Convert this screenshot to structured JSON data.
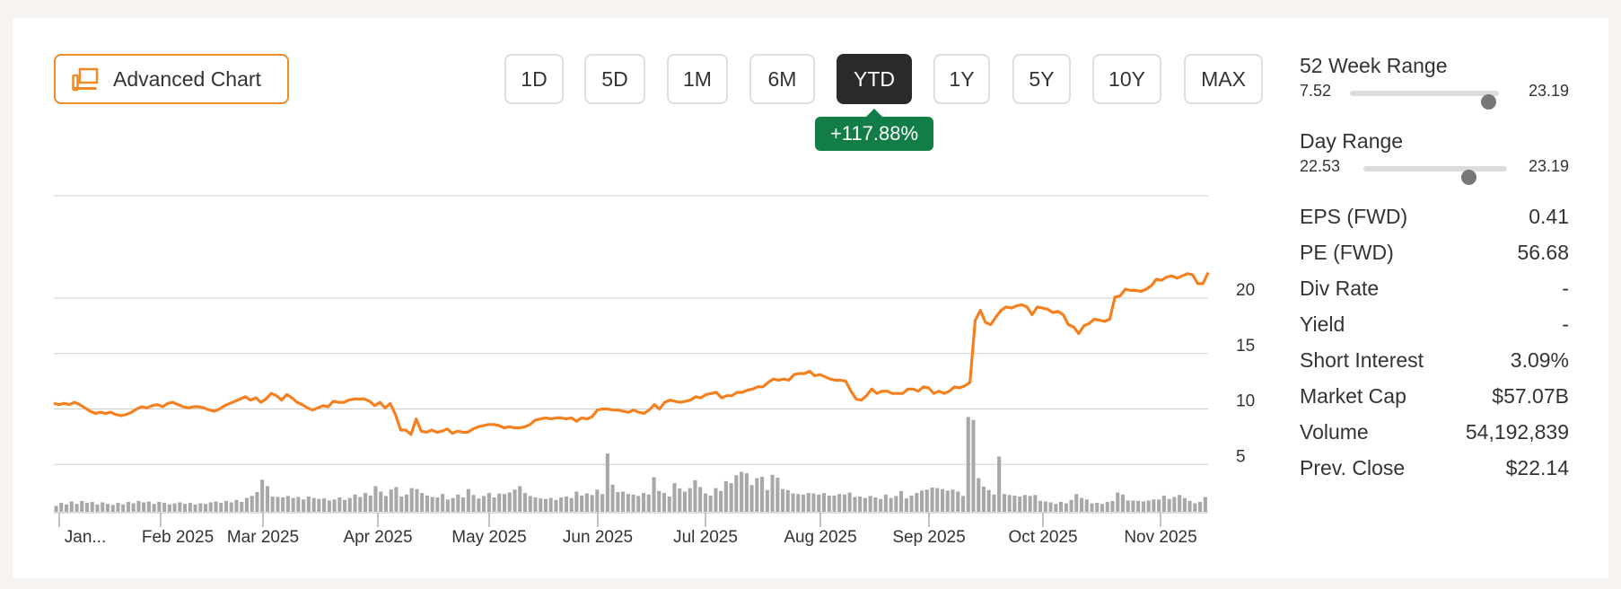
{
  "advanced_chart": {
    "label": "Advanced Chart"
  },
  "ranges": [
    {
      "label": "1D",
      "active": false
    },
    {
      "label": "5D",
      "active": false
    },
    {
      "label": "1M",
      "active": false
    },
    {
      "label": "6M",
      "active": false
    },
    {
      "label": "YTD",
      "active": true
    },
    {
      "label": "1Y",
      "active": false
    },
    {
      "label": "5Y",
      "active": false
    },
    {
      "label": "10Y",
      "active": false
    },
    {
      "label": "MAX",
      "active": false
    }
  ],
  "change_badge": "+117.88%",
  "week52": {
    "title": "52 Week Range",
    "low": "7.52",
    "high": "23.19",
    "position": 0.93
  },
  "day_range": {
    "title": "Day Range",
    "low": "22.53",
    "high": "23.19",
    "position": 0.73
  },
  "stats": [
    {
      "label": "EPS (FWD)",
      "value": "0.41"
    },
    {
      "label": "PE (FWD)",
      "value": "56.68"
    },
    {
      "label": "Div Rate",
      "value": "-"
    },
    {
      "label": "Yield",
      "value": "-"
    },
    {
      "label": "Short Interest",
      "value": "3.09%"
    },
    {
      "label": "Market Cap",
      "value": "$57.07B"
    },
    {
      "label": "Volume",
      "value": "54,192,839"
    },
    {
      "label": "Prev. Close",
      "value": "$22.14"
    }
  ],
  "colors": {
    "line": "#f5801f",
    "volume": "#a8a8a8",
    "accent": "#f08a24",
    "badge": "#127d46"
  },
  "chart_data": {
    "type": "line",
    "x_tick_labels": [
      "Jan...",
      "Feb 2025",
      "Mar 2025",
      "Apr 2025",
      "May 2025",
      "Jun 2025",
      "Jul 2025",
      "Aug 2025",
      "Sep 2025",
      "Oct 2025",
      "Nov 2025"
    ],
    "y_tick_labels": [
      "5",
      "10",
      "15",
      "20"
    ],
    "ylim": [
      0,
      25
    ],
    "grid": true,
    "series": [
      {
        "values": [
          10.5,
          10.4,
          10.5,
          10.4,
          10.6,
          10.4,
          10.1,
          9.8,
          9.6,
          9.7,
          9.6,
          9.7,
          9.5,
          9.4,
          9.5,
          9.7,
          10.0,
          10.2,
          10.1,
          10.3,
          10.4,
          10.2,
          10.5,
          10.6,
          10.4,
          10.2,
          10.1,
          10.2,
          10.2,
          10.1,
          9.9,
          9.8,
          10.0,
          10.3,
          10.5,
          10.7,
          10.9,
          11.1,
          10.8,
          11.0,
          10.6,
          10.9,
          11.4,
          11.2,
          10.8,
          11.3,
          11.0,
          10.6,
          10.4,
          10.1,
          9.9,
          10.1,
          10.3,
          10.2,
          10.7,
          10.6,
          10.6,
          10.8,
          10.9,
          10.9,
          10.9,
          10.7,
          10.3,
          10.6,
          10.1,
          10.5,
          9.5,
          8.1,
          8.1,
          7.7,
          9.1,
          8.0,
          7.9,
          8.1,
          7.9,
          8.0,
          8.2,
          7.8,
          8.0,
          7.9,
          7.9,
          8.2,
          8.4,
          8.5,
          8.6,
          8.6,
          8.5,
          8.3,
          8.4,
          8.3,
          8.3,
          8.4,
          8.6,
          9.0,
          9.1,
          9.2,
          9.1,
          9.2,
          9.2,
          9.1,
          9.2,
          8.9,
          9.2,
          9.1,
          9.3,
          9.9,
          10.0,
          10.0,
          9.9,
          9.9,
          9.8,
          9.7,
          9.9,
          9.7,
          9.6,
          9.9,
          10.4,
          10.0,
          10.6,
          10.8,
          10.7,
          10.6,
          10.7,
          10.8,
          11.1,
          11.0,
          11.3,
          11.4,
          11.5,
          11.0,
          11.2,
          11.2,
          11.5,
          11.5,
          11.7,
          11.8,
          12.0,
          12.0,
          12.4,
          12.7,
          12.6,
          12.7,
          12.6,
          13.1,
          13.2,
          13.2,
          13.4,
          13.0,
          13.1,
          12.9,
          12.7,
          12.6,
          12.6,
          12.5,
          11.6,
          10.9,
          10.8,
          11.2,
          11.8,
          11.4,
          11.6,
          11.6,
          11.4,
          11.4,
          11.4,
          11.8,
          11.8,
          11.6,
          12.0,
          11.9,
          11.4,
          11.6,
          11.4,
          11.6,
          12.0,
          11.9,
          12.1,
          12.4,
          18.0,
          18.9,
          17.8,
          17.6,
          18.3,
          18.9,
          19.2,
          19.1,
          19.3,
          19.4,
          19.2,
          18.5,
          19.2,
          19.1,
          19.0,
          18.7,
          18.8,
          18.5,
          17.6,
          17.4,
          16.8,
          17.5,
          17.7,
          18.1,
          18.0,
          17.9,
          18.1,
          20.1,
          20.2,
          20.8,
          20.7,
          20.7,
          20.6,
          20.8,
          21.1,
          21.7,
          21.6,
          21.9,
          22.0,
          21.8,
          22.0,
          22.2,
          22.1,
          21.3,
          21.3,
          22.3
        ]
      },
      {
        "name": "volume",
        "values": [
          1.2,
          1.8,
          1.5,
          2.1,
          1.6,
          2.2,
          1.8,
          2.0,
          1.5,
          1.9,
          1.6,
          1.4,
          1.8,
          1.5,
          2.0,
          1.7,
          2.2,
          1.9,
          2.1,
          1.6,
          2.0,
          1.8,
          1.5,
          1.7,
          1.9,
          1.6,
          1.8,
          1.5,
          1.7,
          1.6,
          1.9,
          2.1,
          1.8,
          2.2,
          1.9,
          2.4,
          2.0,
          2.8,
          3.2,
          4.0,
          6.5,
          5.2,
          3.1,
          3.0,
          2.9,
          3.2,
          2.8,
          3.0,
          2.5,
          3.1,
          2.8,
          2.6,
          2.7,
          2.3,
          2.5,
          2.9,
          2.4,
          2.8,
          3.5,
          3.0,
          3.8,
          3.3,
          5.2,
          4.1,
          3.2,
          4.5,
          5.0,
          3.1,
          3.5,
          4.8,
          4.6,
          3.8,
          3.3,
          3.0,
          2.9,
          3.6,
          2.5,
          2.8,
          3.5,
          2.9,
          4.6,
          3.4,
          2.7,
          3.2,
          3.8,
          2.9,
          3.7,
          3.6,
          3.9,
          4.5,
          5.2,
          3.8,
          3.2,
          2.9,
          2.7,
          2.6,
          2.8,
          2.4,
          2.9,
          3.1,
          2.8,
          4.1,
          3.3,
          3.7,
          3.4,
          4.5,
          3.6,
          11.8,
          5.5,
          4.0,
          4.1,
          3.6,
          3.5,
          3.2,
          3.8,
          3.5,
          7.0,
          4.2,
          3.8,
          3.1,
          5.8,
          4.7,
          4.1,
          4.8,
          6.4,
          5.0,
          3.7,
          3.3,
          4.8,
          4.2,
          6.2,
          5.8,
          7.4,
          8.1,
          7.8,
          5.4,
          6.8,
          7.1,
          4.4,
          7.5,
          6.9,
          4.6,
          4.4,
          3.7,
          3.6,
          3.5,
          3.8,
          3.7,
          3.5,
          3.8,
          3.3,
          3.3,
          3.6,
          3.5,
          3.9,
          3.0,
          3.1,
          2.8,
          3.2,
          2.9,
          2.6,
          3.5,
          2.8,
          3.2,
          4.2,
          2.7,
          3.3,
          3.8,
          4.3,
          4.5,
          4.9,
          4.8,
          4.6,
          4.3,
          4.5,
          4.1,
          3.2,
          19.2,
          18.6,
          6.8,
          5.1,
          4.4,
          3.5,
          11.2,
          3.6,
          3.4,
          3.3,
          3.1,
          3.4,
          3.2,
          3.4,
          2.2,
          2.1,
          1.9,
          1.6,
          2.0,
          1.7,
          2.4,
          3.6,
          2.8,
          2.5,
          1.7,
          1.8,
          1.6,
          2.0,
          2.2,
          3.9,
          3.5,
          2.3,
          2.3,
          2.2,
          2.1,
          2.3,
          2.5,
          2.5,
          3.3,
          2.6,
          3.0,
          3.4,
          2.8,
          2.2,
          1.7,
          2.0,
          3.0
        ]
      }
    ]
  }
}
